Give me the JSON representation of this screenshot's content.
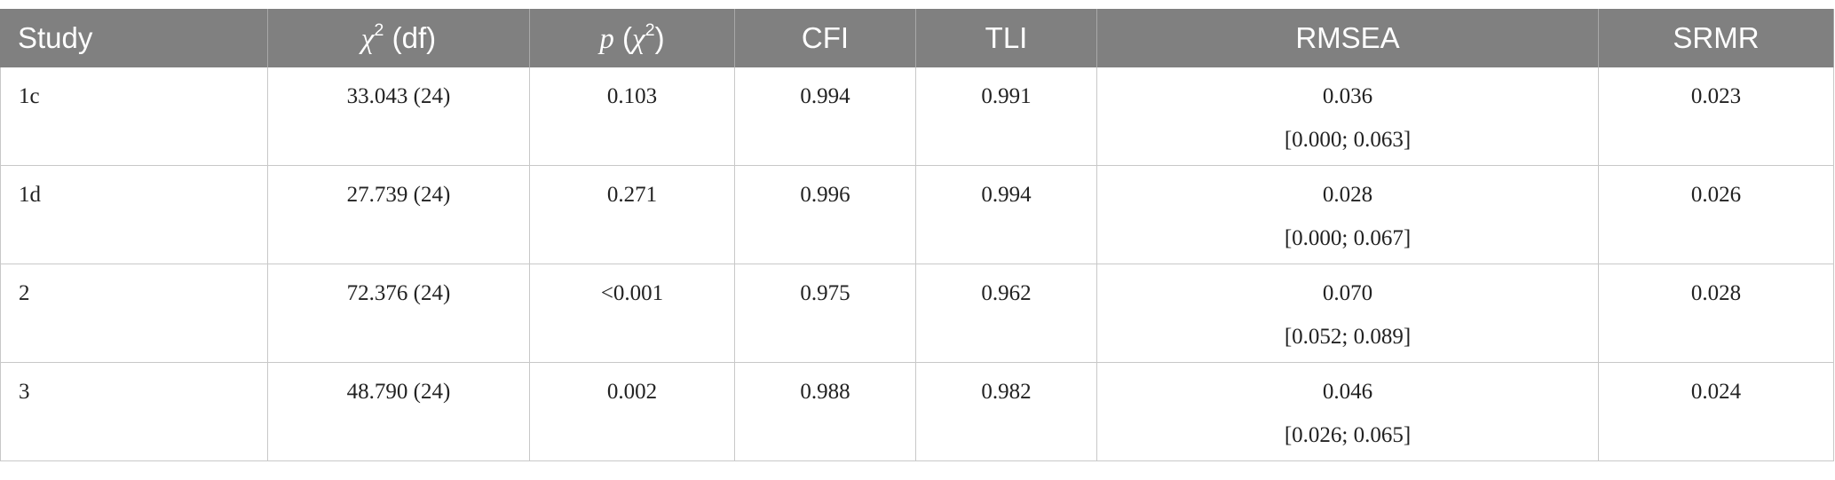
{
  "table": {
    "header": [
      [
        {
          "t": "Study",
          "s": "n"
        }
      ],
      [
        {
          "t": "χ",
          "s": "i"
        },
        {
          "t": "2",
          "s": "sup"
        },
        {
          "t": " (df)",
          "s": "n"
        }
      ],
      [
        {
          "t": "p",
          "s": "i"
        },
        {
          "t": " (",
          "s": "n"
        },
        {
          "t": "χ",
          "s": "i"
        },
        {
          "t": "2",
          "s": "sup"
        },
        {
          "t": ")",
          "s": "n"
        }
      ],
      [
        {
          "t": "CFI",
          "s": "n"
        }
      ],
      [
        {
          "t": "TLI",
          "s": "n"
        }
      ],
      [
        {
          "t": "RMSEA",
          "s": "n"
        }
      ],
      [
        {
          "t": "SRMR",
          "s": "n"
        }
      ]
    ],
    "rows": [
      [
        [
          "1c"
        ],
        [
          "33.043 (24)"
        ],
        [
          "0.103"
        ],
        [
          "0.994"
        ],
        [
          "0.991"
        ],
        [
          "0.036",
          "[0.000; 0.063]"
        ],
        [
          "0.023"
        ]
      ],
      [
        [
          "1d"
        ],
        [
          "27.739 (24)"
        ],
        [
          "0.271"
        ],
        [
          "0.996"
        ],
        [
          "0.994"
        ],
        [
          "0.028",
          "[0.000; 0.067]"
        ],
        [
          "0.026"
        ]
      ],
      [
        [
          "2"
        ],
        [
          "72.376 (24)"
        ],
        [
          "<0.001"
        ],
        [
          "0.975"
        ],
        [
          "0.962"
        ],
        [
          "0.070",
          "[0.052; 0.089]"
        ],
        [
          "0.028"
        ]
      ],
      [
        [
          "3"
        ],
        [
          "48.790 (24)"
        ],
        [
          "0.002"
        ],
        [
          "0.988"
        ],
        [
          "0.982"
        ],
        [
          "0.046",
          "[0.026; 0.065]"
        ],
        [
          "0.024"
        ]
      ]
    ]
  }
}
